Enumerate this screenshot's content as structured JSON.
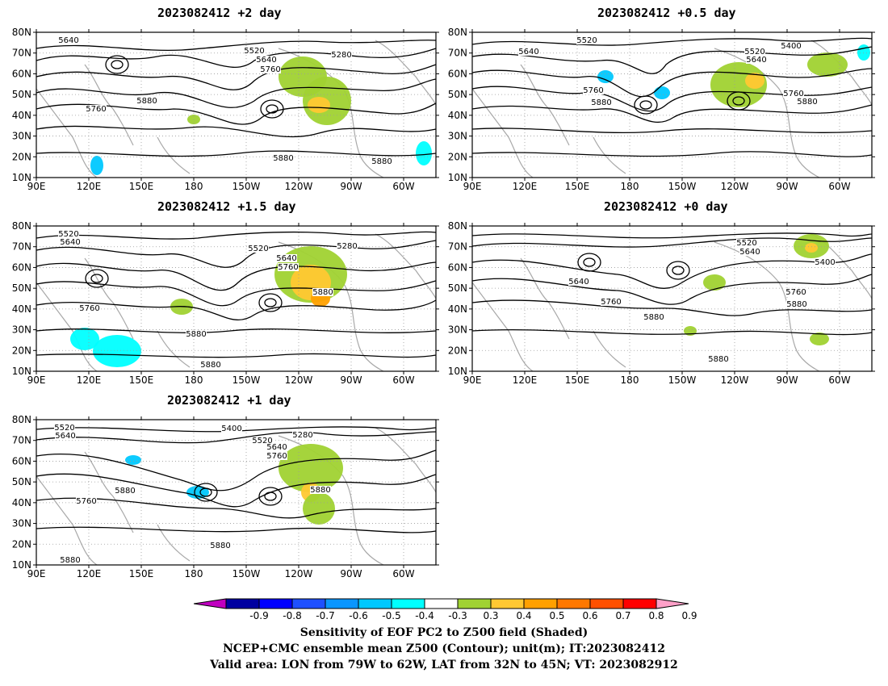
{
  "panels": [
    {
      "id": "p1",
      "title": "2023082412 +2 day"
    },
    {
      "id": "p2",
      "title": "2023082412 +0.5 day"
    },
    {
      "id": "p3",
      "title": "2023082412 +1.5 day"
    },
    {
      "id": "p4",
      "title": "2023082412 +0 day"
    },
    {
      "id": "p5",
      "title": "2023082412 +1 day"
    }
  ],
  "axes": {
    "lat_ticks": [
      "80N",
      "70N",
      "60N",
      "50N",
      "40N",
      "30N",
      "20N",
      "10N"
    ],
    "lon_ticks": [
      "90E",
      "120E",
      "150E",
      "180",
      "150W",
      "120W",
      "90W",
      "60W"
    ]
  },
  "contour_labels": {
    "p1": [
      "5640",
      "5520",
      "5280",
      "5640",
      "5760",
      "5760",
      "5880",
      "5880",
      "5880"
    ],
    "p2": [
      "5520",
      "5640",
      "5400",
      "5520",
      "5640",
      "5760",
      "5880",
      "5760",
      "5880"
    ],
    "p3": [
      "5520",
      "5640",
      "5520",
      "5280",
      "5640",
      "5760",
      "5880",
      "5760",
      "5880",
      "5880"
    ],
    "p4": [
      "5520",
      "5640",
      "5400",
      "5640",
      "5760",
      "5880",
      "5760",
      "5880",
      "5880"
    ],
    "p5": [
      "5520",
      "5640",
      "5400",
      "5520",
      "5280",
      "5640",
      "5760",
      "5880",
      "5880",
      "5760",
      "5880",
      "5880"
    ]
  },
  "colorbar": {
    "ticks": [
      "-0.9",
      "-0.8",
      "-0.7",
      "-0.6",
      "-0.5",
      "-0.4",
      "-0.3",
      "0.3",
      "0.4",
      "0.5",
      "0.6",
      "0.7",
      "0.8",
      "0.9"
    ],
    "colors": [
      "#c000c0",
      "#0000a0",
      "#0000ff",
      "#1e50ff",
      "#0a96ff",
      "#00c8ff",
      "#00ffff",
      "#ffffff",
      "#a0d232",
      "#ffc832",
      "#ffa000",
      "#ff7800",
      "#ff5000",
      "#ff0000",
      "#ffa0c8"
    ]
  },
  "caption": {
    "line1": "Sensitivity of EOF PC2 to Z500 field (Shaded)",
    "line2": "NCEP+CMC ensemble mean Z500 (Contour); unit(m); IT:2023082412",
    "line3": "Valid area: LON from 79W to 62W, LAT from 32N to 45N; VT: 2023082912"
  }
}
